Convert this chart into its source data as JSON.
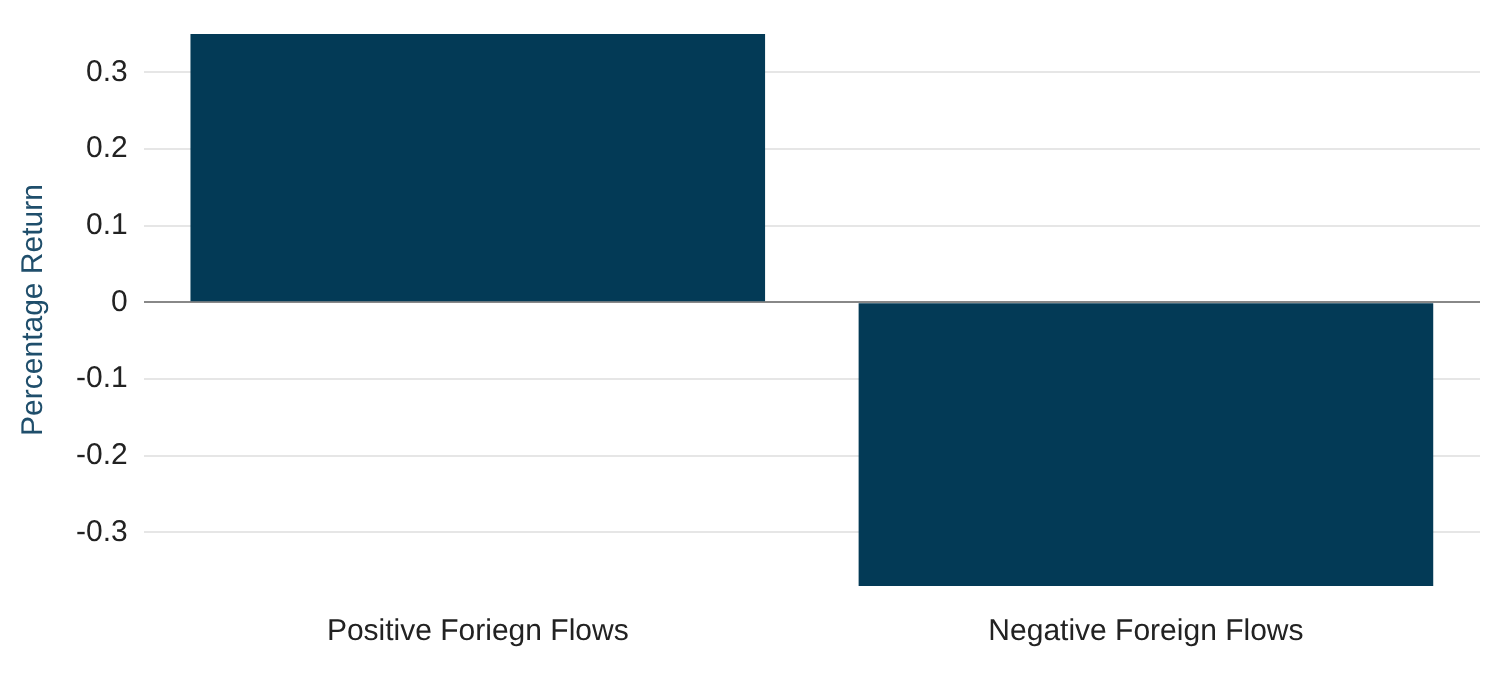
{
  "chart_data": {
    "type": "bar",
    "ylabel": "Percentage Return",
    "categories": [
      "Positive Foriegn Flows",
      "Negative Foreign Flows"
    ],
    "values": [
      0.35,
      -0.37
    ],
    "color": "#033a56",
    "ylim": [
      -0.37,
      0.35
    ],
    "yticks": [
      -0.3,
      -0.2,
      -0.1,
      0,
      0.1,
      0.2,
      0.3
    ],
    "grid": "y",
    "legend": false
  }
}
